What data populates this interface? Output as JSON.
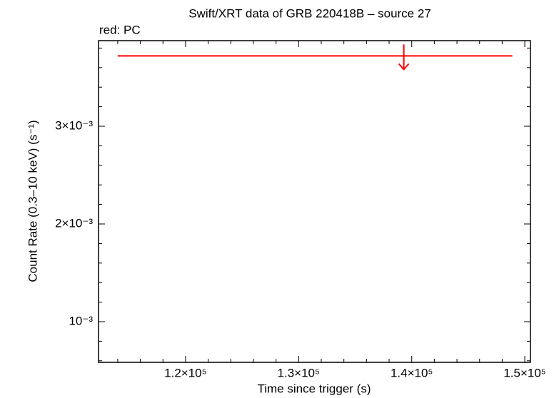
{
  "chart_data": {
    "type": "upper-limit",
    "title": "Swift/XRT data of GRB 220418B – source 27",
    "annotation": "red: PC",
    "xlabel": "Time since trigger (s)",
    "ylabel": "Count Rate (0.3–10 keV) (s⁻¹)",
    "xlim": [
      112300,
      150500
    ],
    "ylim": [
      0.000584,
      0.003876
    ],
    "xticks": [
      {
        "value": 120000,
        "label": "1.2×10⁵"
      },
      {
        "value": 130000,
        "label": "1.3×10⁵"
      },
      {
        "value": 140000,
        "label": "1.4×10⁵"
      },
      {
        "value": 150000,
        "label": "1.5×10⁵"
      }
    ],
    "yticks": [
      {
        "value": 0.001,
        "label": "10⁻³"
      },
      {
        "value": 0.002,
        "label": "2×10⁻³"
      },
      {
        "value": 0.003,
        "label": "3×10⁻³"
      }
    ],
    "xticks_minor": [
      114000,
      116000,
      118000,
      122000,
      124000,
      126000,
      128000,
      132000,
      134000,
      136000,
      138000,
      142000,
      144000,
      146000,
      148000
    ],
    "yticks_minor": [
      0.0006,
      0.0008,
      0.0012,
      0.0014,
      0.0016,
      0.0018,
      0.0022,
      0.0024,
      0.0026,
      0.0028,
      0.0032,
      0.0034,
      0.0036,
      0.0038
    ],
    "series": [
      {
        "color": "#ff0000",
        "x": [
          139300
        ],
        "xlo": [
          114000
        ],
        "xhi": [
          148900
        ],
        "values": [
          0.00372
        ]
      }
    ]
  }
}
